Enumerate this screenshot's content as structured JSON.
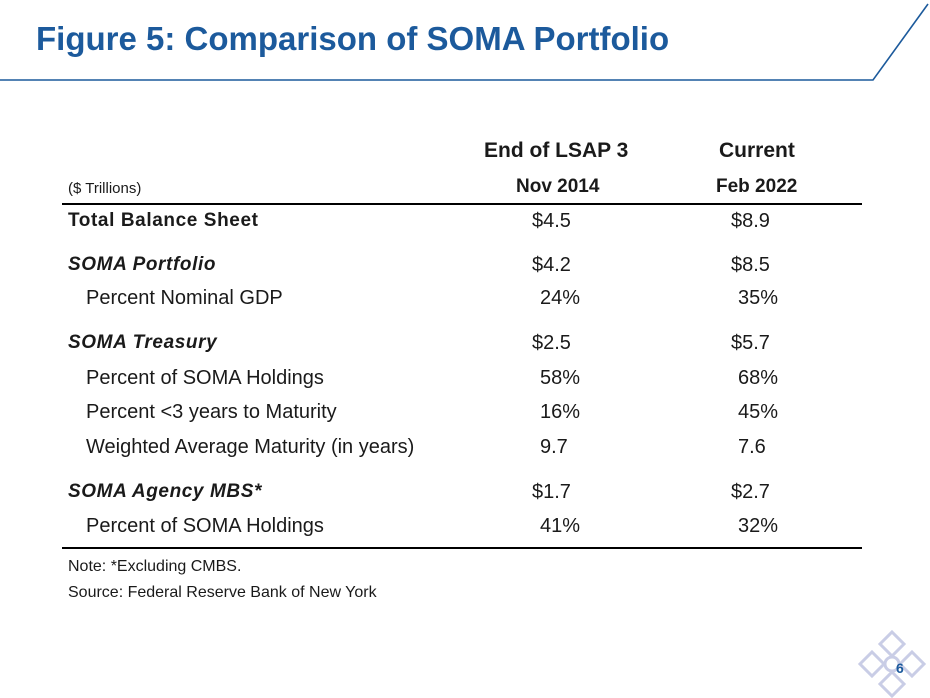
{
  "title": "Figure 5: Comparison of SOMA Portfolio",
  "table": {
    "units": "($ Trillions)",
    "columns": [
      {
        "line1": "End of LSAP 3",
        "line2": "Nov 2014"
      },
      {
        "line1": "Current",
        "line2": "Feb 2022"
      }
    ],
    "rows": [
      {
        "label": "Total Balance Sheet",
        "v1": "$4.5",
        "v2": "$8.9"
      },
      {
        "label": "SOMA Portfolio",
        "v1": "$4.2",
        "v2": "$8.5"
      },
      {
        "label": "Percent Nominal GDP",
        "v1": "24%",
        "v2": "35%"
      },
      {
        "label": "SOMA Treasury",
        "v1": "$2.5",
        "v2": "$5.7"
      },
      {
        "label": "Percent of SOMA Holdings",
        "v1": "58%",
        "v2": "68%"
      },
      {
        "label": "Percent <3 years to Maturity",
        "v1": "16%",
        "v2": "45%"
      },
      {
        "label": "Weighted Average Maturity (in years)",
        "v1": "9.7",
        "v2": "7.6"
      },
      {
        "label": "SOMA Agency MBS*",
        "v1": "$1.7",
        "v2": "$2.7"
      },
      {
        "label": "Percent of SOMA Holdings",
        "v1": "41%",
        "v2": "32%"
      }
    ]
  },
  "notes": {
    "note": "Note: *Excluding CMBS.",
    "source": "Source: Federal Reserve Bank of New York"
  },
  "page_number": "6",
  "colors": {
    "title": "#1c5a9c",
    "rule": "#1c5a9c",
    "logo": "#c9cde6"
  },
  "icons": {
    "logo": "lattice-logo-icon"
  }
}
